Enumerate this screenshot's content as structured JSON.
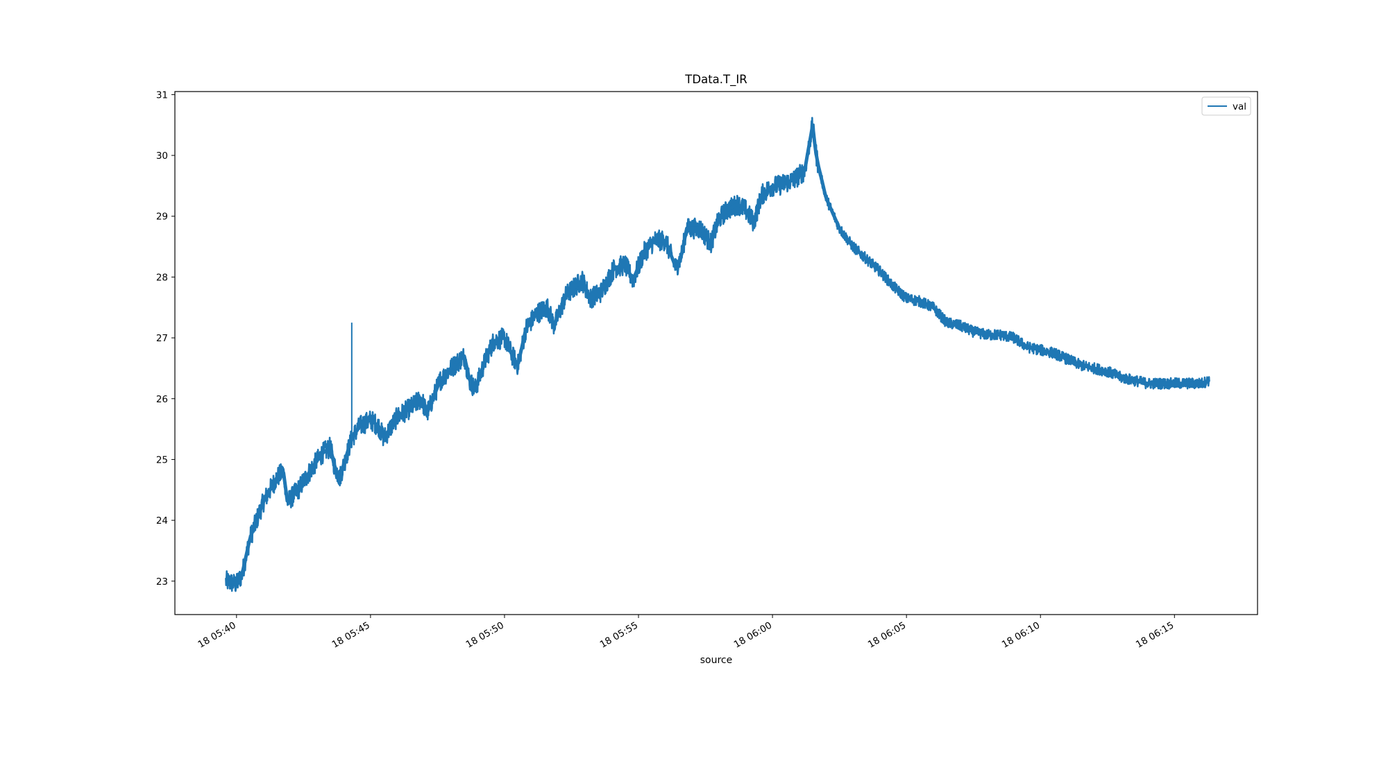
{
  "chart_data": {
    "type": "line",
    "title": "TData.T_IR",
    "xlabel": "source",
    "ylabel": "",
    "x_tick_labels": [
      "18 05:40",
      "18 05:45",
      "18 05:50",
      "18 05:55",
      "18 06:00",
      "18 06:05",
      "18 06:10",
      "18 06:15"
    ],
    "x_tick_minutes": [
      40,
      45,
      50,
      55,
      60,
      65,
      70,
      75
    ],
    "y_ticks": [
      23,
      24,
      25,
      26,
      27,
      28,
      29,
      30,
      31
    ],
    "xlim_minutes": [
      37.7,
      78.1
    ],
    "ylim": [
      22.45,
      31.05
    ],
    "grid": false,
    "legend_position": "top-right",
    "series": [
      {
        "name": "val",
        "color": "#1f77b4",
        "minutes": [
          39.6,
          40.0,
          40.2,
          40.5,
          41.0,
          41.5,
          41.75,
          41.9,
          42.3,
          42.8,
          43.2,
          43.5,
          43.65,
          43.85,
          44.3,
          44.6,
          45.0,
          45.3,
          45.5,
          46.0,
          46.5,
          46.9,
          47.1,
          47.6,
          48.0,
          48.5,
          48.7,
          48.9,
          49.3,
          49.6,
          50.0,
          50.3,
          50.5,
          50.8,
          51.2,
          51.6,
          51.85,
          52.3,
          52.9,
          53.2,
          53.6,
          54.1,
          54.5,
          54.8,
          55.2,
          55.6,
          56.0,
          56.4,
          56.6,
          56.8,
          57.3,
          57.7,
          58.0,
          58.3,
          58.7,
          59.0,
          59.3,
          59.6,
          60.0,
          60.2,
          60.5,
          60.8,
          61.2,
          61.5,
          61.6,
          61.7,
          62.0,
          62.5,
          63.0,
          63.5,
          64.0,
          64.5,
          65.0,
          65.5,
          66.0,
          66.5,
          67.0,
          67.5,
          68.0,
          68.5,
          69.0,
          69.5,
          70.0,
          70.5,
          71.0,
          71.5,
          72.0,
          72.5,
          73.0,
          73.5,
          74.0,
          74.5,
          75.0,
          75.5,
          76.0,
          76.3
        ],
        "values": [
          23.0,
          22.95,
          23.1,
          23.7,
          24.3,
          24.7,
          24.8,
          24.3,
          24.5,
          24.85,
          25.1,
          25.2,
          24.9,
          24.7,
          25.35,
          25.55,
          25.65,
          25.55,
          25.35,
          25.7,
          25.85,
          26.0,
          25.75,
          26.3,
          26.5,
          26.7,
          26.3,
          26.15,
          26.65,
          26.95,
          27.0,
          26.7,
          26.55,
          27.15,
          27.4,
          27.5,
          27.2,
          27.7,
          27.95,
          27.65,
          27.75,
          28.15,
          28.2,
          27.95,
          28.4,
          28.6,
          28.6,
          28.15,
          28.35,
          28.8,
          28.8,
          28.55,
          28.95,
          29.1,
          29.2,
          29.1,
          28.9,
          29.35,
          29.5,
          29.5,
          29.55,
          29.6,
          29.75,
          30.5,
          30.1,
          29.85,
          29.3,
          28.8,
          28.5,
          28.3,
          28.1,
          27.85,
          27.65,
          27.6,
          27.5,
          27.25,
          27.2,
          27.1,
          27.05,
          27.05,
          27.0,
          26.85,
          26.8,
          26.75,
          26.65,
          26.55,
          26.5,
          26.45,
          26.35,
          26.3,
          26.25,
          26.25,
          26.25,
          26.25,
          26.25,
          26.3
        ],
        "spike": {
          "minute": 44.3,
          "value": 27.25
        }
      }
    ]
  }
}
